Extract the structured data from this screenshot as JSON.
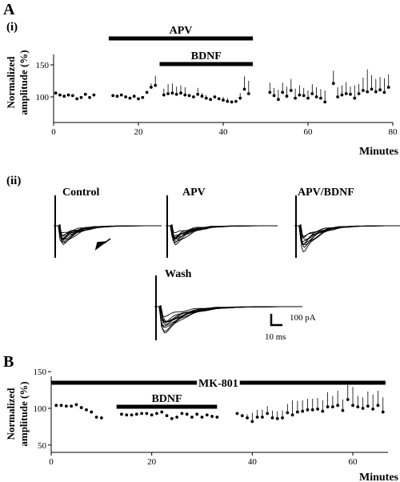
{
  "panel_labels": {
    "A": "A",
    "Ai": "(i)",
    "Aii": "(ii)",
    "B": "B"
  },
  "chart_data": [
    {
      "type": "scatter",
      "panel": "A(i)",
      "xlabel": "Minutes",
      "ylabel_line1": "Normalized",
      "ylabel_line2": "amplitude (%)",
      "xlim": [
        0,
        80
      ],
      "ylim": [
        60,
        160
      ],
      "xticks": [
        0,
        20,
        40,
        60,
        80
      ],
      "yticks": [
        100,
        150
      ],
      "bars": [
        {
          "label": "APV",
          "start": 13,
          "end": 47
        },
        {
          "label": "BDNF",
          "start": 25,
          "end": 47
        }
      ],
      "series": [
        {
          "points": [
            [
              0.5,
              106,
              0
            ],
            [
              1.5,
              103,
              0
            ],
            [
              2.5,
              101,
              0
            ],
            [
              3.5,
              103,
              0
            ],
            [
              4.5,
              102,
              0
            ],
            [
              5.5,
              97,
              0
            ],
            [
              6.5,
              99,
              0
            ],
            [
              7.5,
              104,
              0
            ],
            [
              8.5,
              99,
              0
            ],
            [
              9.5,
              103,
              0
            ],
            [
              14,
              102,
              0
            ],
            [
              15,
              101,
              0
            ],
            [
              16,
              103,
              0
            ],
            [
              17,
              100,
              0
            ],
            [
              18,
              98,
              0
            ],
            [
              19,
              101,
              0
            ],
            [
              20,
              97,
              0
            ],
            [
              21,
              99,
              0
            ],
            [
              22,
              107,
              0
            ],
            [
              23,
              115,
              6
            ],
            [
              24,
              118,
              15
            ],
            [
              26,
              103,
              10
            ],
            [
              27,
              105,
              15
            ],
            [
              28,
              106,
              15
            ],
            [
              29,
              104,
              12
            ],
            [
              30,
              106,
              12
            ],
            [
              31,
              103,
              12
            ],
            [
              32,
              102,
              0
            ],
            [
              33,
              100,
              0
            ],
            [
              34,
              104,
              10
            ],
            [
              35,
              101,
              5
            ],
            [
              36,
              98,
              5
            ],
            [
              37,
              96,
              0
            ],
            [
              38,
              100,
              0
            ],
            [
              39,
              97,
              0
            ],
            [
              40,
              95,
              5
            ],
            [
              41,
              93,
              5
            ],
            [
              42,
              92,
              0
            ],
            [
              43,
              93,
              0
            ],
            [
              44,
              98,
              8
            ],
            [
              45,
              112,
              20
            ],
            [
              46,
              105,
              20
            ],
            [
              51,
              107,
              15
            ],
            [
              52,
              102,
              12
            ],
            [
              53,
              96,
              15
            ],
            [
              54,
              107,
              15
            ],
            [
              55,
              101,
              15
            ],
            [
              56,
              110,
              18
            ],
            [
              57,
              98,
              15
            ],
            [
              58,
              103,
              15
            ],
            [
              59,
              102,
              12
            ],
            [
              60,
              98,
              12
            ],
            [
              61,
              105,
              15
            ],
            [
              62,
              100,
              15
            ],
            [
              63,
              98,
              14
            ],
            [
              64,
              92,
              18
            ],
            [
              66,
              121,
              20
            ],
            [
              67,
              100,
              15
            ],
            [
              68,
              103,
              15
            ],
            [
              69,
              105,
              18
            ],
            [
              70,
              104,
              12
            ],
            [
              71,
              98,
              20
            ],
            [
              72,
              105,
              15
            ],
            [
              73,
              110,
              20
            ],
            [
              74,
              108,
              35
            ],
            [
              75,
              112,
              22
            ],
            [
              76,
              108,
              20
            ],
            [
              77,
              111,
              20
            ],
            [
              78,
              107,
              22
            ],
            [
              79,
              115,
              20
            ]
          ]
        }
      ]
    },
    {
      "type": "line",
      "panel": "A(ii)",
      "description_free": true,
      "traces": [
        {
          "label": "Control",
          "count": 10,
          "scale_y": 0.24
        },
        {
          "label": "APV",
          "count": 10,
          "scale_y": 0.36
        },
        {
          "label": "APV/BDNF",
          "count": 10,
          "scale_y": 0.6
        },
        {
          "label": "Wash",
          "count": 10,
          "scale_y": 0.6
        }
      ],
      "scalebar": {
        "amplitude": "100 pA",
        "time": "10 ms"
      }
    },
    {
      "type": "scatter",
      "panel": "B",
      "xlabel": "Minutes",
      "ylabel_line1": "Normalized",
      "ylabel_line2": "amplitude (%)",
      "xlim": [
        0,
        67
      ],
      "ylim": [
        40,
        160
      ],
      "xticks": [
        0,
        20,
        40,
        60
      ],
      "yticks": [
        50,
        100,
        150
      ],
      "bars": [
        {
          "label": "MK-801",
          "start": 0,
          "end": 66.5
        },
        {
          "label": "BDNF",
          "start": 13,
          "end": 33
        }
      ],
      "series": [
        {
          "points": [
            [
              1,
              104,
              0
            ],
            [
              2,
              104,
              0
            ],
            [
              3,
              103,
              0
            ],
            [
              4,
              103,
              0
            ],
            [
              5,
              105,
              0
            ],
            [
              6,
              101,
              0
            ],
            [
              7,
              98,
              0
            ],
            [
              8,
              95,
              0
            ],
            [
              9,
              88,
              0
            ],
            [
              10,
              87,
              0
            ],
            [
              14,
              92,
              0
            ],
            [
              15,
              91,
              0
            ],
            [
              16,
              91,
              0
            ],
            [
              17,
              92,
              0
            ],
            [
              18,
              93,
              0
            ],
            [
              19,
              93,
              0
            ],
            [
              20,
              91,
              0
            ],
            [
              21,
              93,
              0
            ],
            [
              22,
              95,
              0
            ],
            [
              23,
              90,
              0
            ],
            [
              24,
              86,
              0
            ],
            [
              25,
              88,
              0
            ],
            [
              26,
              93,
              0
            ],
            [
              27,
              92,
              0
            ],
            [
              28,
              88,
              0
            ],
            [
              29,
              92,
              0
            ],
            [
              30,
              88,
              0
            ],
            [
              31,
              91,
              0
            ],
            [
              32,
              89,
              0
            ],
            [
              33,
              88,
              0
            ],
            [
              37,
              93,
              0
            ],
            [
              38,
              90,
              0
            ],
            [
              39,
              87,
              5
            ],
            [
              40,
              82,
              12
            ],
            [
              41,
              88,
              10
            ],
            [
              42,
              88,
              10
            ],
            [
              43,
              93,
              10
            ],
            [
              44,
              87,
              10
            ],
            [
              45,
              86,
              10
            ],
            [
              46,
              87,
              10
            ],
            [
              47,
              94,
              12
            ],
            [
              48,
              91,
              20
            ],
            [
              49,
              95,
              15
            ],
            [
              50,
              96,
              15
            ],
            [
              51,
              98,
              15
            ],
            [
              52,
              98,
              15
            ],
            [
              53,
              99,
              15
            ],
            [
              54,
              96,
              15
            ],
            [
              55,
              102,
              20
            ],
            [
              56,
              102,
              15
            ],
            [
              57,
              104,
              20
            ],
            [
              58,
              97,
              15
            ],
            [
              59,
              112,
              20
            ],
            [
              60,
              104,
              25
            ],
            [
              61,
              102,
              15
            ],
            [
              62,
              100,
              15
            ],
            [
              63,
              103,
              20
            ],
            [
              64,
              99,
              20
            ],
            [
              65,
              104,
              20
            ],
            [
              66,
              95,
              20
            ]
          ]
        }
      ]
    }
  ]
}
